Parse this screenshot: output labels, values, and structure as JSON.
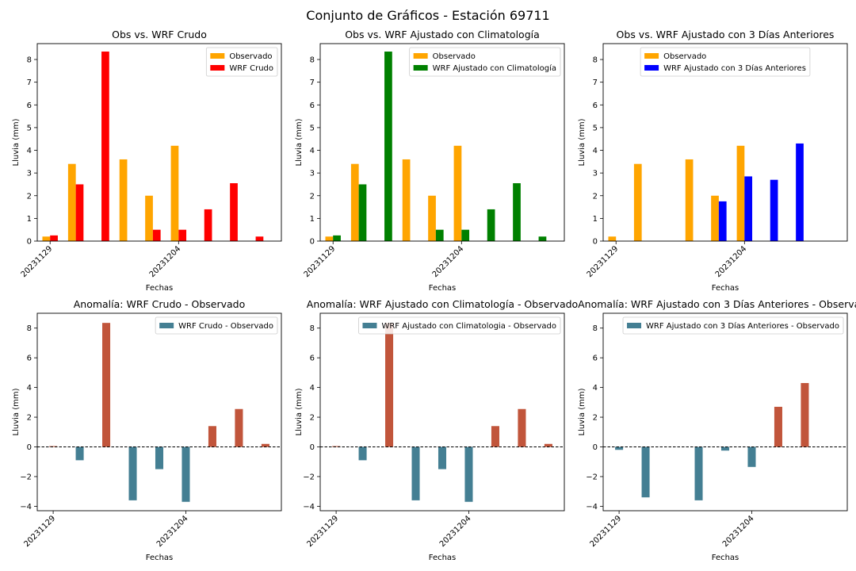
{
  "suptitle": "Conjunto de Gráficos - Estación 69711",
  "colors": {
    "observado": "#ffa500",
    "wrf_crudo": "#ff0000",
    "wrf_clima": "#008000",
    "wrf_3dias": "#0000ff",
    "anom_neg": "#447f93",
    "anom_pos": "#c1553b"
  },
  "chart_data": [
    {
      "type": "bar",
      "title": "Obs vs. WRF Crudo",
      "xlabel": "Fechas",
      "ylabel": "Lluvia (mm)",
      "ylim": [
        0,
        8.7
      ],
      "yticks": [
        0,
        1,
        2,
        3,
        4,
        5,
        6,
        7,
        8
      ],
      "xlim": [
        -0.5,
        9.0
      ],
      "x_tick_labels": [
        {
          "x": 0,
          "label": "20231129"
        },
        {
          "x": 5,
          "label": "20231204"
        }
      ],
      "legend": "top-right",
      "series": [
        {
          "name": "Observado",
          "color_key": "observado",
          "offset": -0.15,
          "values": [
            0.2,
            3.4,
            0,
            3.6,
            2.0,
            4.2,
            0,
            0,
            0
          ]
        },
        {
          "name": "WRF Crudo",
          "color_key": "wrf_crudo",
          "offset": 0.15,
          "values": [
            0.25,
            2.5,
            8.35,
            0,
            0.5,
            0.5,
            1.4,
            2.55,
            0.2
          ]
        }
      ]
    },
    {
      "type": "bar",
      "title": "Obs vs. WRF Ajustado con Climatología",
      "xlabel": "Fechas",
      "ylabel": "Lluvia (mm)",
      "ylim": [
        0,
        8.7
      ],
      "yticks": [
        0,
        1,
        2,
        3,
        4,
        5,
        6,
        7,
        8
      ],
      "xlim": [
        -0.5,
        9.0
      ],
      "x_tick_labels": [
        {
          "x": 0,
          "label": "20231129"
        },
        {
          "x": 5,
          "label": "20231204"
        }
      ],
      "legend": "top-right",
      "series": [
        {
          "name": "Observado",
          "color_key": "observado",
          "offset": -0.15,
          "values": [
            0.2,
            3.4,
            0,
            3.6,
            2.0,
            4.2,
            0,
            0,
            0
          ]
        },
        {
          "name": "WRF Ajustado con Climatología",
          "color_key": "wrf_clima",
          "offset": 0.15,
          "values": [
            0.25,
            2.5,
            8.35,
            0,
            0.5,
            0.5,
            1.4,
            2.55,
            0.2
          ]
        }
      ]
    },
    {
      "type": "bar",
      "title": "Obs vs. WRF Ajustado con 3 Días Anteriores",
      "xlabel": "Fechas",
      "ylabel": "Lluvia (mm)",
      "ylim": [
        0,
        8.7
      ],
      "yticks": [
        0,
        1,
        2,
        3,
        4,
        5,
        6,
        7,
        8
      ],
      "xlim": [
        -0.5,
        9.0
      ],
      "x_tick_labels": [
        {
          "x": 0,
          "label": "20231129"
        },
        {
          "x": 5,
          "label": "20231204"
        }
      ],
      "legend": "top-center",
      "series": [
        {
          "name": "Observado",
          "color_key": "observado",
          "offset": -0.15,
          "values": [
            0.2,
            3.4,
            0,
            3.6,
            2.0,
            4.2,
            0,
            0,
            0
          ]
        },
        {
          "name": "WRF Ajustado con 3 Días Anteriores",
          "color_key": "wrf_3dias",
          "offset": 0.15,
          "values": [
            0,
            0,
            0,
            0,
            1.75,
            2.85,
            2.7,
            4.3,
            0
          ]
        }
      ]
    },
    {
      "type": "bar",
      "title": "Anomalía: WRF Crudo - Observado",
      "xlabel": "Fechas",
      "ylabel": "Lluvia (mm)",
      "ylim": [
        -4.3,
        9.0
      ],
      "yticks": [
        -4,
        -2,
        0,
        2,
        4,
        6,
        8
      ],
      "xlim": [
        -0.6,
        8.6
      ],
      "x_tick_labels": [
        {
          "x": 0,
          "label": "20231129"
        },
        {
          "x": 5,
          "label": "20231204"
        }
      ],
      "legend": "top-right",
      "zero_line": true,
      "series": [
        {
          "name": "WRF Crudo - Observado",
          "values": [
            0.05,
            -0.9,
            8.35,
            -3.6,
            -1.5,
            -3.7,
            1.4,
            2.55,
            0.2
          ]
        }
      ]
    },
    {
      "type": "bar",
      "title": "Anomalía: WRF Ajustado con Climatología - Observado",
      "xlabel": "Fechas",
      "ylabel": "Lluvia (mm)",
      "ylim": [
        -4.3,
        9.0
      ],
      "yticks": [
        -4,
        -2,
        0,
        2,
        4,
        6,
        8
      ],
      "xlim": [
        -0.6,
        8.6
      ],
      "x_tick_labels": [
        {
          "x": 0,
          "label": "20231129"
        },
        {
          "x": 5,
          "label": "20231204"
        }
      ],
      "legend": "top-right",
      "zero_line": true,
      "series": [
        {
          "name": "WRF Ajustado con Climatologia - Observado",
          "values": [
            0.05,
            -0.9,
            8.35,
            -3.6,
            -1.5,
            -3.7,
            1.4,
            2.55,
            0.2
          ]
        }
      ]
    },
    {
      "type": "bar",
      "title": "Anomalía: WRF Ajustado con 3 Días Anteriores - Observado",
      "xlabel": "Fechas",
      "ylabel": "Lluvia (mm)",
      "ylim": [
        -4.3,
        9.0
      ],
      "yticks": [
        -4,
        -2,
        0,
        2,
        4,
        6,
        8
      ],
      "xlim": [
        -0.6,
        8.6
      ],
      "x_tick_labels": [
        {
          "x": 0,
          "label": "20231129"
        },
        {
          "x": 5,
          "label": "20231204"
        }
      ],
      "legend": "top-right",
      "zero_line": true,
      "series": [
        {
          "name": "WRF Ajustado con 3 Días Anteriores - Observado",
          "values": [
            -0.2,
            -3.4,
            0,
            -3.6,
            -0.25,
            -1.35,
            2.7,
            4.3,
            0
          ]
        }
      ]
    }
  ]
}
